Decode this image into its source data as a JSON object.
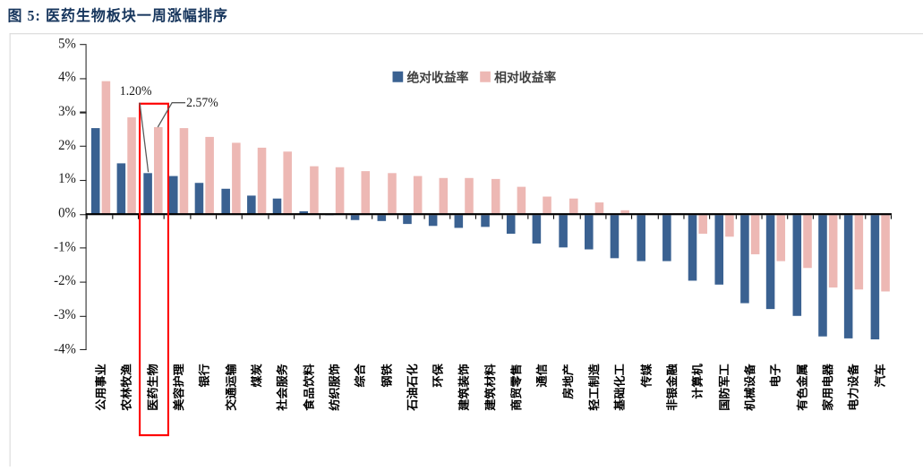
{
  "figure": {
    "title": "图 5: 医药生物板块一周涨幅排序"
  },
  "chart_data": {
    "type": "bar",
    "title": "图 5: 医药生物板块一周涨幅排序",
    "categories": [
      "公用事业",
      "农林牧渔",
      "医药生物",
      "美容护理",
      "银行",
      "交通运输",
      "煤炭",
      "社会服务",
      "食品饮料",
      "纺织服饰",
      "综合",
      "钢铁",
      "石油石化",
      "环保",
      "建筑装饰",
      "建筑材料",
      "商贸零售",
      "通信",
      "房地产",
      "轻工制造",
      "基础化工",
      "传媒",
      "非银金融",
      "计算机",
      "国防军工",
      "机械设备",
      "电子",
      "有色金属",
      "家用电器",
      "电力设备",
      "汽车"
    ],
    "series": [
      {
        "key": "abs",
        "name": "绝对收益率",
        "color": "#3A6191",
        "values": [
          2.55,
          1.5,
          1.2,
          1.13,
          0.92,
          0.74,
          0.56,
          0.45,
          0.08,
          0.01,
          -0.13,
          -0.16,
          -0.27,
          -0.33,
          -0.38,
          -0.35,
          -0.56,
          -0.83,
          -0.94,
          -1.02,
          -1.26,
          -1.36,
          -1.35,
          -1.92,
          -2.05,
          -2.6,
          -2.77,
          -2.96,
          -3.58,
          -3.63,
          -3.66
        ]
      },
      {
        "key": "rel",
        "name": "相对收益率",
        "color": "#EDB8B4",
        "values": [
          3.93,
          2.86,
          2.57,
          2.54,
          2.29,
          2.11,
          1.97,
          1.85,
          1.41,
          1.38,
          1.28,
          1.22,
          1.12,
          1.08,
          1.06,
          1.03,
          0.81,
          0.53,
          0.47,
          0.35,
          0.12,
          0.04,
          0.02,
          -0.55,
          -0.62,
          -1.15,
          -1.36,
          -1.55,
          -2.13,
          -2.19,
          -2.24
        ]
      }
    ],
    "yticks": [
      5,
      4,
      3,
      2,
      1,
      0,
      -1,
      -2,
      -3,
      -4
    ],
    "ytick_suffix": "%",
    "ylim": [
      -4,
      5
    ],
    "grid": false,
    "legend_position": "top-center",
    "sorted_by": "相对收益率",
    "highlight": {
      "category": "医药生物",
      "box_color": "#FE0000"
    },
    "annotations": [
      {
        "text": "1.20%",
        "series": "绝对收益率",
        "category": "医药生物",
        "value": 1.2
      },
      {
        "text": "2.57%",
        "series": "相对收益率",
        "category": "医药生物",
        "value": 2.57
      }
    ]
  }
}
